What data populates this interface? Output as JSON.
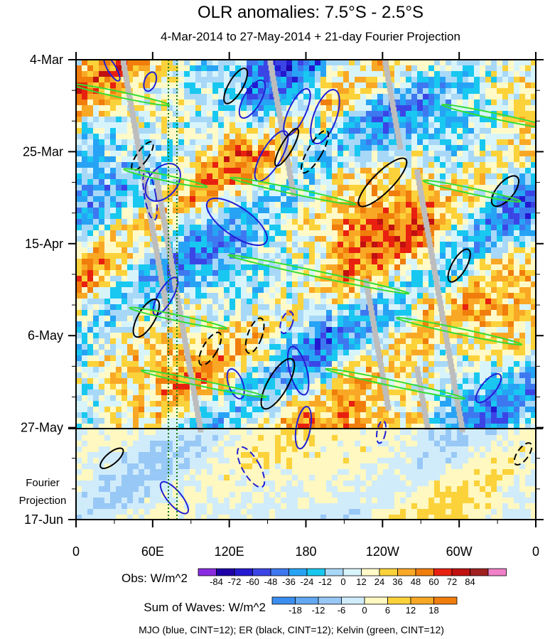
{
  "chart_data": {
    "type": "heatmap",
    "title": "OLR anomalies: 7.5°S - 2.5°S",
    "subtitle": "4-Mar-2014 to 27-May-2014 + 21-day Fourier Projection",
    "x_ticks": [
      "0",
      "60E",
      "120E",
      "180",
      "120W",
      "60W",
      "0"
    ],
    "x_tick_lon": [
      0,
      60,
      120,
      180,
      240,
      300,
      360
    ],
    "y_ticks": [
      "4-Mar",
      "25-Mar",
      "15-Apr",
      "6-May",
      "27-May",
      "17-Jun"
    ],
    "y_tick_day": [
      0,
      21,
      42,
      63,
      84,
      105
    ],
    "projection_label_line1": "Fourier",
    "projection_label_line2": "Projection",
    "obs_colorbar": {
      "label": "Obs: W/m^2",
      "ticks": [
        "-84",
        "-72",
        "-60",
        "-48",
        "-36",
        "-24",
        "-12",
        "0",
        "12",
        "24",
        "36",
        "48",
        "60",
        "72",
        "84"
      ],
      "colors": [
        "#8a2be2",
        "#1d00a8",
        "#2319d0",
        "#3b45e6",
        "#3e78f0",
        "#27a3f5",
        "#18c8f0",
        "#a8d8f8",
        "#d8f4fb",
        "#fffac8",
        "#fcd23a",
        "#f9a825",
        "#f07d0c",
        "#e82010",
        "#c01010",
        "#a02020",
        "#f080c8"
      ]
    },
    "waves_colorbar": {
      "label": "Sum of Waves: W/m^2",
      "ticks": [
        "-18",
        "-12",
        "-6",
        "0",
        "6",
        "12",
        "18"
      ],
      "colors": [
        "#3a8ef0",
        "#62a8f2",
        "#98c8f6",
        "#d0ecfb",
        "#fff8c0",
        "#fcd23a",
        "#f9a825",
        "#f07d0c"
      ]
    },
    "footer": "MJO (blue, CINT=12); ER (black, CINT=12); Kelvin (green, CINT=12)",
    "colors": {
      "mjo": "#1f1fd6",
      "er": "#000000",
      "kelvin": "#33dd33",
      "missing": "#bdbdbd",
      "marker_lines": "#117711"
    },
    "features": {
      "mjo": [
        {
          "lon": 28,
          "day": 2,
          "rx": 6,
          "ry": 20,
          "rot": -30,
          "dash": false
        },
        {
          "lon": 58,
          "day": 5,
          "rx": 8,
          "ry": 14,
          "rot": 20,
          "dash": false
        },
        {
          "lon": 138,
          "day": 9,
          "rx": 12,
          "ry": 30,
          "rot": 30,
          "dash": false
        },
        {
          "lon": 173,
          "day": 12,
          "rx": 12,
          "ry": 36,
          "rot": 25,
          "dash": false
        },
        {
          "lon": 153,
          "day": 22,
          "rx": 14,
          "ry": 40,
          "rot": 30,
          "dash": false
        },
        {
          "lon": 195,
          "day": 13,
          "rx": 16,
          "ry": 40,
          "rot": 20,
          "dash": false
        },
        {
          "lon": 126,
          "day": 37,
          "rx": 20,
          "ry": 50,
          "rot": -55,
          "dash": false
        },
        {
          "lon": 68,
          "day": 28,
          "rx": 20,
          "ry": 30,
          "rot": 40,
          "dash": false
        },
        {
          "lon": 70,
          "day": 54,
          "rx": 10,
          "ry": 30,
          "rot": 30,
          "dash": false
        },
        {
          "lon": 125,
          "day": 74,
          "rx": 10,
          "ry": 22,
          "rot": -20,
          "dash": false
        },
        {
          "lon": 174,
          "day": 71,
          "rx": 12,
          "ry": 35,
          "rot": -15,
          "dash": false
        },
        {
          "lon": 178,
          "day": 84,
          "rx": 10,
          "ry": 30,
          "rot": 10,
          "dash": false
        },
        {
          "lon": 323,
          "day": 75,
          "rx": 10,
          "ry": 25,
          "rot": 40,
          "dash": false
        },
        {
          "lon": 77,
          "day": 100,
          "rx": 10,
          "ry": 28,
          "rot": -40,
          "dash": false
        },
        {
          "lon": 58,
          "day": 31,
          "rx": 8,
          "ry": 35,
          "rot": -10,
          "dash": true
        },
        {
          "lon": 165,
          "day": 60,
          "rx": 8,
          "ry": 16,
          "rot": 20,
          "dash": true
        },
        {
          "lon": 137,
          "day": 93,
          "rx": 12,
          "ry": 32,
          "rot": -30,
          "dash": true
        },
        {
          "lon": 239,
          "day": 85,
          "rx": 6,
          "ry": 16,
          "rot": 10,
          "dash": true
        }
      ],
      "er": [
        {
          "lon": 52,
          "day": 22,
          "rx": 8,
          "ry": 24,
          "rot": 35,
          "dash": true
        },
        {
          "lon": 125,
          "day": 6,
          "rx": 10,
          "ry": 28,
          "rot": 30,
          "dash": false
        },
        {
          "lon": 165,
          "day": 20,
          "rx": 8,
          "ry": 30,
          "rot": 30,
          "dash": false
        },
        {
          "lon": 187,
          "day": 21,
          "rx": 10,
          "ry": 34,
          "rot": 30,
          "dash": true
        },
        {
          "lon": 240,
          "day": 28,
          "rx": 14,
          "ry": 46,
          "rot": 45,
          "dash": false
        },
        {
          "lon": 336,
          "day": 30,
          "rx": 12,
          "ry": 26,
          "rot": 40,
          "dash": false
        },
        {
          "lon": 300,
          "day": 47,
          "rx": 10,
          "ry": 26,
          "rot": 30,
          "dash": false
        },
        {
          "lon": 55,
          "day": 59,
          "rx": 12,
          "ry": 30,
          "rot": 30,
          "dash": false
        },
        {
          "lon": 105,
          "day": 66,
          "rx": 10,
          "ry": 26,
          "rot": 30,
          "dash": true
        },
        {
          "lon": 140,
          "day": 63,
          "rx": 10,
          "ry": 26,
          "rot": 20,
          "dash": true
        },
        {
          "lon": 158,
          "day": 74,
          "rx": 14,
          "ry": 40,
          "rot": 30,
          "dash": false
        },
        {
          "lon": 28,
          "day": 91,
          "rx": 8,
          "ry": 20,
          "rot": 50,
          "dash": false
        },
        {
          "lon": 350,
          "day": 90,
          "rx": 8,
          "ry": 18,
          "rot": 35,
          "dash": true
        }
      ],
      "kelvin": [
        {
          "lon": 35,
          "day": 8,
          "rx": 70,
          "ry": 4,
          "rot": 12
        },
        {
          "lon": 170,
          "day": 30,
          "rx": 90,
          "ry": 4,
          "rot": 12
        },
        {
          "lon": 70,
          "day": 27,
          "rx": 60,
          "ry": 4,
          "rot": 12
        },
        {
          "lon": 330,
          "day": 13,
          "rx": 80,
          "ry": 4,
          "rot": 12
        },
        {
          "lon": 310,
          "day": 30,
          "rx": 70,
          "ry": 4,
          "rot": 12
        },
        {
          "lon": 190,
          "day": 49,
          "rx": 130,
          "ry": 4,
          "rot": 12
        },
        {
          "lon": 80,
          "day": 59,
          "rx": 70,
          "ry": 4,
          "rot": 12
        },
        {
          "lon": 300,
          "day": 62,
          "rx": 90,
          "ry": 4,
          "rot": 12
        },
        {
          "lon": 250,
          "day": 74,
          "rx": 100,
          "ry": 4,
          "rot": 12
        },
        {
          "lon": 100,
          "day": 74,
          "rx": 90,
          "ry": 4,
          "rot": 12
        }
      ]
    }
  }
}
